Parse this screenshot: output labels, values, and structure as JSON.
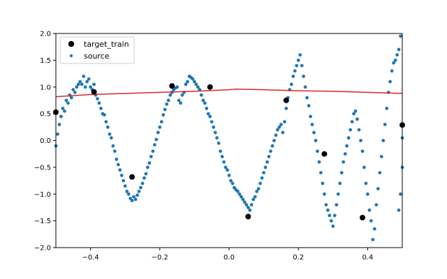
{
  "chart_data": {
    "type": "scatter",
    "title": "",
    "xlabel": "",
    "ylabel": "",
    "xlim": [
      -0.5,
      0.5
    ],
    "ylim": [
      -2.0,
      2.0
    ],
    "xticks": [
      -0.4,
      -0.2,
      0.0,
      0.2,
      0.4
    ],
    "xtick_labels": [
      "−0.4",
      "−0.2",
      "0.0",
      "0.2",
      "0.4"
    ],
    "yticks": [
      -2.0,
      -1.5,
      -1.0,
      -0.5,
      0.0,
      0.5,
      1.0,
      1.5,
      2.0
    ],
    "ytick_labels": [
      "−2.0",
      "−1.5",
      "−1.0",
      "−0.5",
      "0.0",
      "0.5",
      "1.0",
      "1.5",
      "2.0"
    ],
    "grid": false,
    "legend": {
      "position": "upper-left",
      "entries": [
        {
          "label": "target_train",
          "marker": "large-circle",
          "color": "#000000"
        },
        {
          "label": "source",
          "marker": "small-circle",
          "color": "#1f77b4"
        }
      ]
    },
    "series": [
      {
        "name": "target_train",
        "kind": "scatter",
        "color": "#000000",
        "points": [
          [
            -0.5,
            0.53
          ],
          [
            -0.39,
            0.91
          ],
          [
            -0.28,
            -0.68
          ],
          [
            -0.165,
            1.02
          ],
          [
            -0.055,
            1.0
          ],
          [
            0.055,
            -1.42
          ],
          [
            0.165,
            0.75
          ],
          [
            0.275,
            -0.25
          ],
          [
            0.385,
            -1.44
          ],
          [
            0.5,
            0.29
          ]
        ]
      },
      {
        "name": "source",
        "kind": "scatter",
        "color": "#1f77b4",
        "points": [
          [
            -0.5,
            -0.1
          ],
          [
            -0.495,
            0.12
          ],
          [
            -0.49,
            0.3
          ],
          [
            -0.485,
            0.45
          ],
          [
            -0.48,
            0.6
          ],
          [
            -0.475,
            0.55
          ],
          [
            -0.47,
            0.75
          ],
          [
            -0.465,
            0.7
          ],
          [
            -0.46,
            0.85
          ],
          [
            -0.455,
            0.8
          ],
          [
            -0.45,
            0.95
          ],
          [
            -0.445,
            0.9
          ],
          [
            -0.44,
            1.0
          ],
          [
            -0.435,
            1.05
          ],
          [
            -0.43,
            1.1
          ],
          [
            -0.425,
            1.05
          ],
          [
            -0.42,
            1.2
          ],
          [
            -0.415,
            1.0
          ],
          [
            -0.41,
            1.1
          ],
          [
            -0.405,
            1.15
          ],
          [
            -0.4,
            1.0
          ],
          [
            -0.395,
            0.95
          ],
          [
            -0.39,
            1.05
          ],
          [
            -0.385,
            0.85
          ],
          [
            -0.38,
            0.78
          ],
          [
            -0.375,
            0.7
          ],
          [
            -0.37,
            0.6
          ],
          [
            -0.365,
            0.5
          ],
          [
            -0.36,
            0.48
          ],
          [
            -0.355,
            0.35
          ],
          [
            -0.35,
            0.25
          ],
          [
            -0.345,
            0.12
          ],
          [
            -0.34,
            0.05
          ],
          [
            -0.335,
            -0.1
          ],
          [
            -0.33,
            -0.2
          ],
          [
            -0.325,
            -0.35
          ],
          [
            -0.32,
            -0.45
          ],
          [
            -0.315,
            -0.55
          ],
          [
            -0.31,
            -0.65
          ],
          [
            -0.305,
            -0.75
          ],
          [
            -0.3,
            -0.85
          ],
          [
            -0.295,
            -0.95
          ],
          [
            -0.29,
            -1.0
          ],
          [
            -0.285,
            -1.08
          ],
          [
            -0.28,
            -1.12
          ],
          [
            -0.275,
            -1.05
          ],
          [
            -0.27,
            -1.1
          ],
          [
            -0.265,
            -1.02
          ],
          [
            -0.26,
            -0.95
          ],
          [
            -0.255,
            -0.88
          ],
          [
            -0.25,
            -0.8
          ],
          [
            -0.245,
            -0.7
          ],
          [
            -0.24,
            -0.62
          ],
          [
            -0.235,
            -0.5
          ],
          [
            -0.23,
            -0.42
          ],
          [
            -0.225,
            -0.3
          ],
          [
            -0.22,
            -0.2
          ],
          [
            -0.215,
            -0.08
          ],
          [
            -0.21,
            0.02
          ],
          [
            -0.205,
            0.15
          ],
          [
            -0.2,
            0.25
          ],
          [
            -0.195,
            0.35
          ],
          [
            -0.19,
            0.48
          ],
          [
            -0.185,
            0.58
          ],
          [
            -0.18,
            0.68
          ],
          [
            -0.175,
            0.75
          ],
          [
            -0.17,
            0.85
          ],
          [
            -0.165,
            0.9
          ],
          [
            -0.16,
            0.95
          ],
          [
            -0.155,
            0.98
          ],
          [
            -0.15,
            1.0
          ],
          [
            -0.145,
            0.75
          ],
          [
            -0.14,
            0.7
          ],
          [
            -0.135,
            0.85
          ],
          [
            -0.13,
            0.9
          ],
          [
            -0.125,
            1.05
          ],
          [
            -0.12,
            1.1
          ],
          [
            -0.115,
            1.2
          ],
          [
            -0.11,
            1.18
          ],
          [
            -0.105,
            1.15
          ],
          [
            -0.1,
            1.1
          ],
          [
            -0.095,
            1.05
          ],
          [
            -0.09,
            1.0
          ],
          [
            -0.085,
            0.95
          ],
          [
            -0.08,
            0.85
          ],
          [
            -0.075,
            0.75
          ],
          [
            -0.07,
            0.7
          ],
          [
            -0.065,
            0.6
          ],
          [
            -0.06,
            0.5
          ],
          [
            -0.055,
            0.45
          ],
          [
            -0.05,
            0.35
          ],
          [
            -0.045,
            0.25
          ],
          [
            -0.04,
            0.15
          ],
          [
            -0.035,
            0.05
          ],
          [
            -0.03,
            -0.05
          ],
          [
            -0.025,
            -0.2
          ],
          [
            -0.02,
            -0.3
          ],
          [
            -0.015,
            -0.4
          ],
          [
            -0.01,
            -0.5
          ],
          [
            -0.005,
            -0.55
          ],
          [
            0.0,
            -0.65
          ],
          [
            0.005,
            -0.75
          ],
          [
            0.01,
            -0.8
          ],
          [
            0.015,
            -0.88
          ],
          [
            0.02,
            -0.92
          ],
          [
            0.025,
            -0.95
          ],
          [
            0.03,
            -1.0
          ],
          [
            0.035,
            -1.05
          ],
          [
            0.04,
            -1.1
          ],
          [
            0.045,
            -1.15
          ],
          [
            0.05,
            -1.2
          ],
          [
            0.055,
            -1.25
          ],
          [
            0.06,
            -1.3
          ],
          [
            0.065,
            -1.2
          ],
          [
            0.07,
            -1.1
          ],
          [
            0.075,
            -1.05
          ],
          [
            0.08,
            -0.95
          ],
          [
            0.085,
            -0.9
          ],
          [
            0.09,
            -0.8
          ],
          [
            0.095,
            -0.7
          ],
          [
            0.1,
            -0.6
          ],
          [
            0.105,
            -0.5
          ],
          [
            0.11,
            -0.4
          ],
          [
            0.115,
            -0.3
          ],
          [
            0.12,
            -0.2
          ],
          [
            0.125,
            -0.1
          ],
          [
            0.13,
            0.0
          ],
          [
            0.135,
            0.1
          ],
          [
            0.14,
            0.2
          ],
          [
            0.145,
            0.25
          ],
          [
            0.15,
            0.3
          ],
          [
            0.155,
            0.15
          ],
          [
            0.16,
            0.35
          ],
          [
            0.165,
            0.6
          ],
          [
            0.17,
            0.8
          ],
          [
            0.175,
            0.95
          ],
          [
            0.18,
            1.05
          ],
          [
            0.185,
            1.2
          ],
          [
            0.19,
            1.3
          ],
          [
            0.195,
            1.4
          ],
          [
            0.2,
            1.5
          ],
          [
            0.205,
            1.6
          ],
          [
            0.21,
            1.4
          ],
          [
            0.215,
            1.2
          ],
          [
            0.22,
            1.0
          ],
          [
            0.225,
            0.8
          ],
          [
            0.23,
            0.65
          ],
          [
            0.235,
            0.45
          ],
          [
            0.24,
            0.3
          ],
          [
            0.245,
            0.15
          ],
          [
            0.25,
            0.0
          ],
          [
            0.255,
            -0.2
          ],
          [
            0.26,
            -0.4
          ],
          [
            0.265,
            -0.6
          ],
          [
            0.27,
            -0.8
          ],
          [
            0.275,
            -1.0
          ],
          [
            0.28,
            -1.2
          ],
          [
            0.285,
            -1.3
          ],
          [
            0.29,
            -1.4
          ],
          [
            0.295,
            -1.5
          ],
          [
            0.3,
            -1.6
          ],
          [
            0.305,
            -1.4
          ],
          [
            0.31,
            -1.2
          ],
          [
            0.315,
            -1.0
          ],
          [
            0.32,
            -0.8
          ],
          [
            0.325,
            -0.6
          ],
          [
            0.33,
            -0.4
          ],
          [
            0.335,
            -0.25
          ],
          [
            0.34,
            -0.1
          ],
          [
            0.345,
            0.05
          ],
          [
            0.35,
            0.2
          ],
          [
            0.355,
            0.35
          ],
          [
            0.36,
            0.5
          ],
          [
            0.365,
            0.55
          ],
          [
            0.37,
            0.4
          ],
          [
            0.375,
            0.2
          ],
          [
            0.38,
            0.0
          ],
          [
            0.385,
            -0.2
          ],
          [
            0.39,
            -0.5
          ],
          [
            0.395,
            -0.8
          ],
          [
            0.4,
            -1.0
          ],
          [
            0.405,
            -1.3
          ],
          [
            0.41,
            -1.5
          ],
          [
            0.415,
            -1.85
          ],
          [
            0.42,
            -1.65
          ],
          [
            0.425,
            -1.2
          ],
          [
            0.43,
            -0.9
          ],
          [
            0.435,
            -0.6
          ],
          [
            0.44,
            -0.3
          ],
          [
            0.445,
            0.0
          ],
          [
            0.45,
            0.3
          ],
          [
            0.455,
            0.6
          ],
          [
            0.46,
            0.9
          ],
          [
            0.465,
            1.1
          ],
          [
            0.47,
            1.3
          ],
          [
            0.475,
            1.45
          ],
          [
            0.48,
            1.5
          ],
          [
            0.485,
            1.6
          ],
          [
            0.49,
            1.7
          ],
          [
            0.495,
            1.95
          ],
          [
            0.5,
            0.05
          ],
          [
            0.5,
            -0.5
          ],
          [
            0.495,
            -1.0
          ],
          [
            0.49,
            -1.3
          ]
        ]
      },
      {
        "name": "",
        "kind": "line",
        "color": "#d62728",
        "points": [
          [
            -0.5,
            0.82
          ],
          [
            -0.4,
            0.86
          ],
          [
            -0.3,
            0.88
          ],
          [
            -0.2,
            0.9
          ],
          [
            -0.1,
            0.92
          ],
          [
            0.0,
            0.95
          ],
          [
            0.02,
            0.96
          ],
          [
            0.1,
            0.95
          ],
          [
            0.2,
            0.93
          ],
          [
            0.3,
            0.92
          ],
          [
            0.4,
            0.9
          ],
          [
            0.5,
            0.88
          ]
        ]
      }
    ]
  }
}
